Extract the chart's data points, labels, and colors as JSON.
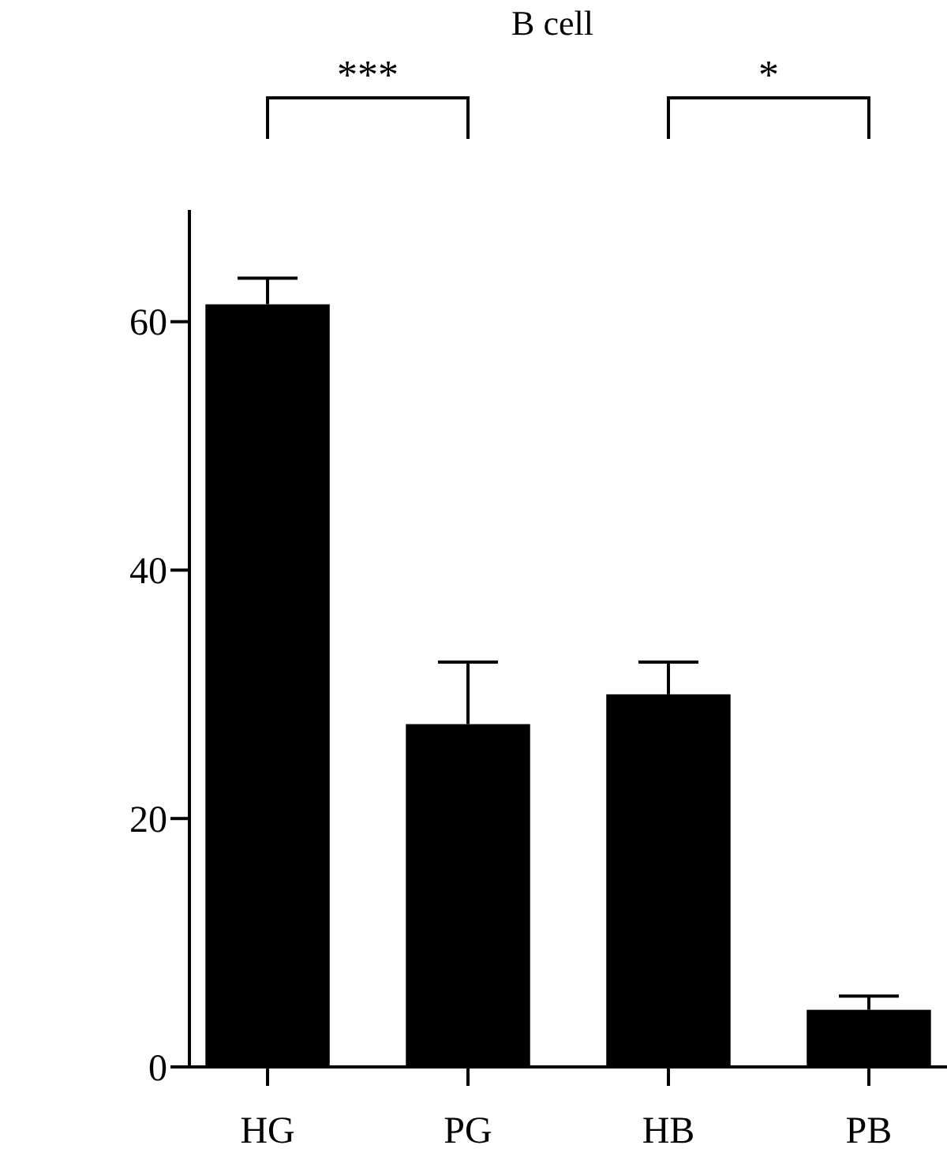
{
  "chart_data": {
    "type": "bar",
    "title": "B cell",
    "categories": [
      "HG",
      "PG",
      "HB",
      "PB"
    ],
    "values": [
      61.4,
      27.6,
      30.0,
      4.6
    ],
    "errors": [
      2.1,
      5.0,
      2.6,
      1.1
    ],
    "color": "#000000",
    "ylim": [
      0,
      69
    ],
    "yticks": [
      0,
      20,
      40,
      60
    ],
    "annotations": [
      "***",
      "*"
    ]
  }
}
